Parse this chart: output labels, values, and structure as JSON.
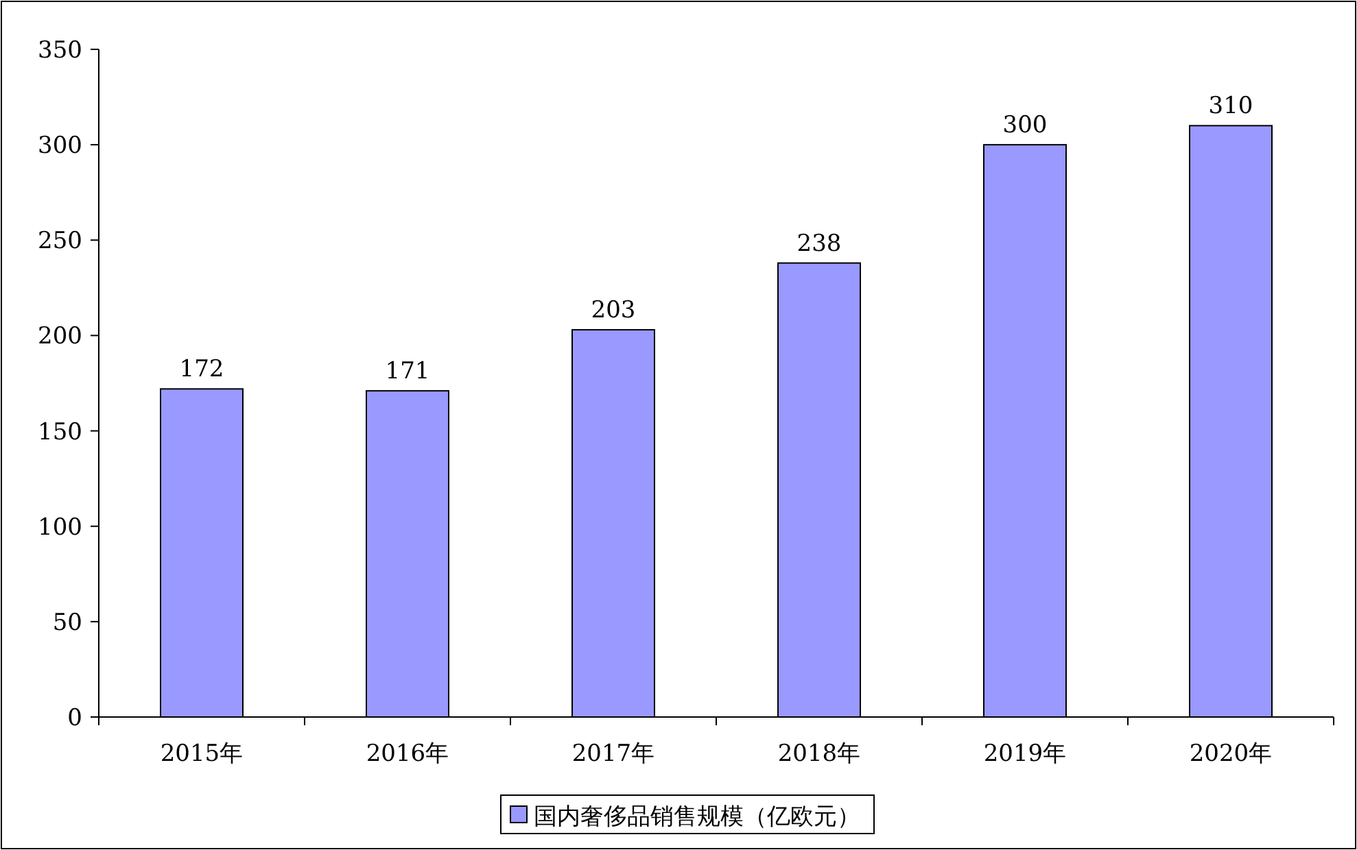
{
  "chart_data": {
    "type": "bar",
    "categories": [
      "2015年",
      "2016年",
      "2017年",
      "2018年",
      "2019年",
      "2020年"
    ],
    "series": [
      {
        "name": "国内奢侈品销售规模（亿欧元）",
        "color": "#9999ff",
        "values": [
          172,
          171,
          203,
          238,
          300,
          310
        ]
      }
    ],
    "ylim": [
      0,
      350
    ],
    "yticks": [
      0,
      50,
      100,
      150,
      200,
      250,
      300,
      350
    ],
    "data_labels": true,
    "legend": "bottom",
    "grid": false
  }
}
